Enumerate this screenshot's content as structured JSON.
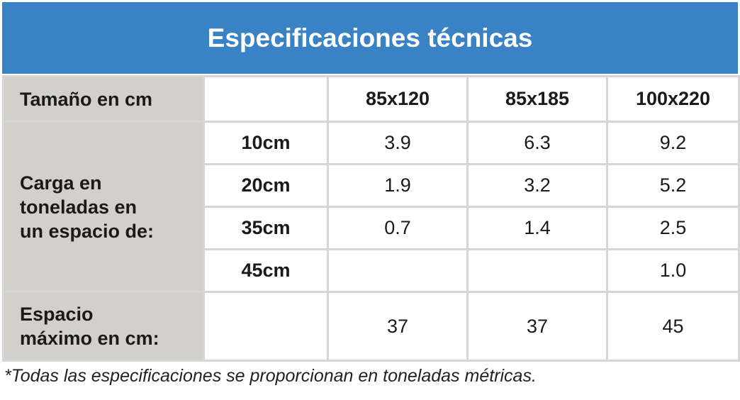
{
  "header": {
    "title": "Especificaciones técnicas"
  },
  "table": {
    "size_label": "Tamaño en cm",
    "sizes": [
      "85x120",
      "85x185",
      "100x220"
    ],
    "load_label": "Carga en\ntoneladas en\nun espacio de:",
    "load_rows": [
      {
        "label": "10cm",
        "values": [
          "3.9",
          "6.3",
          "9.2"
        ]
      },
      {
        "label": "20cm",
        "values": [
          "1.9",
          "3.2",
          "5.2"
        ]
      },
      {
        "label": "35cm",
        "values": [
          "0.7",
          "1.4",
          "2.5"
        ]
      },
      {
        "label": "45cm",
        "values": [
          null,
          null,
          "1.0"
        ]
      }
    ],
    "max_label": "Espacio\nmáximo en cm:",
    "max_values": [
      "37",
      "37",
      "45"
    ]
  },
  "footnote": "*Todas las especificaciones se proporcionan en toneladas métricas."
}
